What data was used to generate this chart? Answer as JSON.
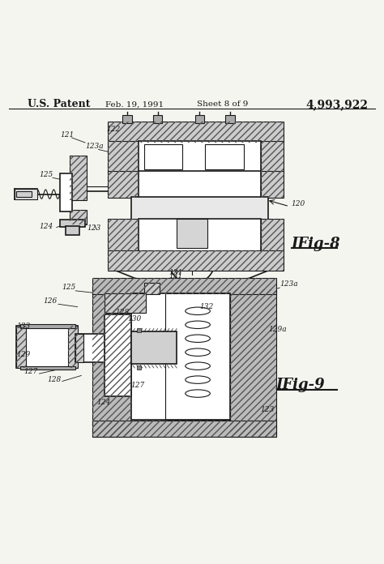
{
  "bg_color": "#f5f5f0",
  "header": {
    "patent_text": "U.S. Patent",
    "date_text": "Feb. 19, 1991",
    "sheet_text": "Sheet 8 of 9",
    "number_text": "4,993,922"
  },
  "fig8": {
    "label": "IFig-8"
  },
  "fig9": {
    "label": "IFig-9"
  }
}
